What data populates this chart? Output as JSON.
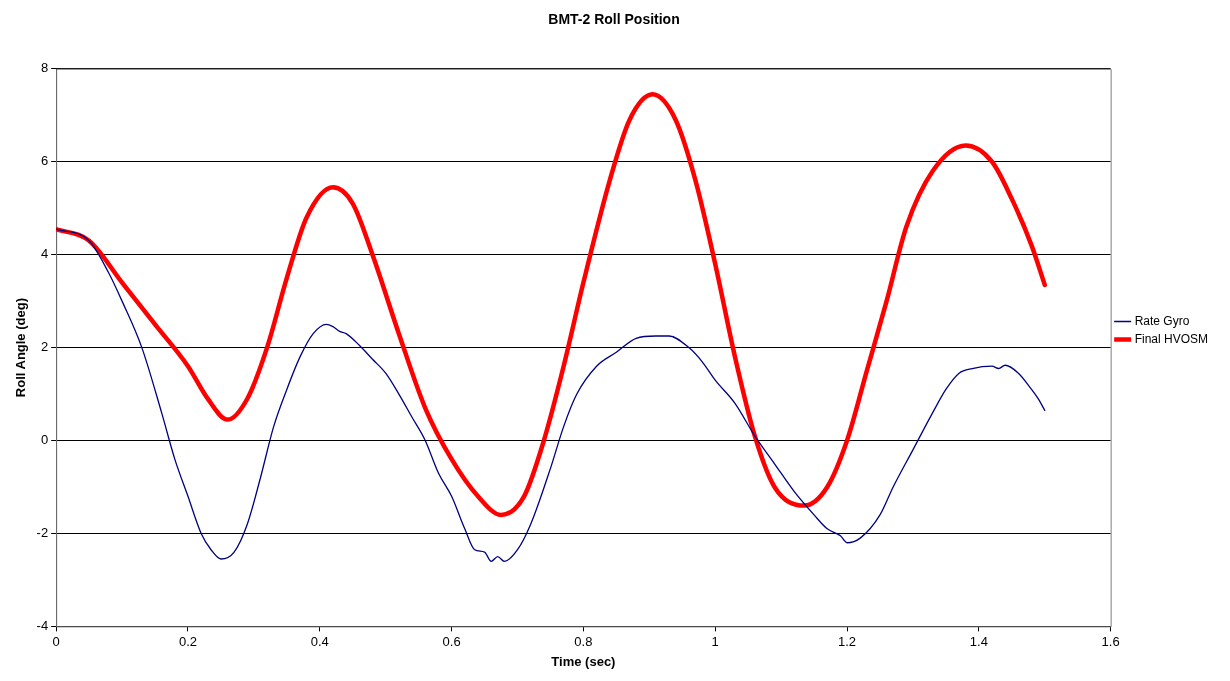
{
  "chart_data": {
    "type": "line",
    "title": "BMT-2 Roll Position",
    "xlabel": "Time (sec)",
    "ylabel": "Roll Angle (deg)",
    "xlim": [
      0,
      1.6
    ],
    "xticks": [
      0,
      0.2,
      0.4,
      0.6,
      0.8,
      1,
      1.2,
      1.4,
      1.6
    ],
    "ylim": [
      -4,
      8
    ],
    "yticks": [
      -4,
      -2,
      0,
      2,
      4,
      6,
      8
    ],
    "grid": "y",
    "legend": "right",
    "marker": "none",
    "line_style": "solid",
    "series": [
      {
        "name": "Rate Gyro",
        "color": "#000080",
        "x": [
          0,
          0.05,
          0.08,
          0.1,
          0.13,
          0.16,
          0.18,
          0.2,
          0.22,
          0.235,
          0.25,
          0.27,
          0.29,
          0.31,
          0.33,
          0.35,
          0.37,
          0.39,
          0.41,
          0.42,
          0.43,
          0.44,
          0.46,
          0.48,
          0.5,
          0.52,
          0.54,
          0.56,
          0.58,
          0.6,
          0.62,
          0.635,
          0.65,
          0.66,
          0.67,
          0.68,
          0.7,
          0.72,
          0.75,
          0.77,
          0.79,
          0.82,
          0.85,
          0.88,
          0.91,
          0.93,
          0.96,
          0.98,
          1,
          1.03,
          1.06,
          1.09,
          1.12,
          1.15,
          1.17,
          1.19,
          1.2,
          1.22,
          1.25,
          1.27,
          1.3,
          1.33,
          1.35,
          1.37,
          1.39,
          1.42,
          1.43,
          1.44,
          1.46,
          1.48,
          1.49,
          1.5
        ],
        "values": [
          4.55,
          4.3,
          3.6,
          3.0,
          2.0,
          0.6,
          -0.4,
          -1.2,
          -2.0,
          -2.35,
          -2.55,
          -2.4,
          -1.8,
          -0.8,
          0.3,
          1.1,
          1.8,
          2.3,
          2.5,
          2.45,
          2.35,
          2.3,
          2.05,
          1.75,
          1.45,
          1.0,
          0.5,
          0.0,
          -0.7,
          -1.2,
          -1.9,
          -2.35,
          -2.4,
          -2.6,
          -2.5,
          -2.6,
          -2.35,
          -1.8,
          -0.6,
          0.3,
          1.0,
          1.6,
          1.9,
          2.2,
          2.25,
          2.25,
          2.0,
          1.7,
          1.3,
          0.8,
          0.1,
          -0.5,
          -1.1,
          -1.6,
          -1.9,
          -2.05,
          -2.2,
          -2.1,
          -1.6,
          -1.0,
          -0.2,
          0.6,
          1.1,
          1.45,
          1.55,
          1.6,
          1.55,
          1.62,
          1.45,
          1.1,
          0.9,
          0.65
        ]
      },
      {
        "name": "Final HVOSM",
        "color": "#ff0000",
        "x": [
          0,
          0.05,
          0.1,
          0.15,
          0.2,
          0.23,
          0.26,
          0.29,
          0.32,
          0.35,
          0.38,
          0.42,
          0.45,
          0.48,
          0.52,
          0.56,
          0.6,
          0.64,
          0.675,
          0.71,
          0.74,
          0.77,
          0.8,
          0.84,
          0.87,
          0.905,
          0.94,
          0.97,
          1,
          1.03,
          1.06,
          1.09,
          1.135,
          1.17,
          1.2,
          1.23,
          1.26,
          1.29,
          1.33,
          1.38,
          1.42,
          1.45,
          1.48,
          1.5
        ],
        "values": [
          4.55,
          4.3,
          3.4,
          2.5,
          1.6,
          0.9,
          0.45,
          0.9,
          2.0,
          3.5,
          4.8,
          5.45,
          5.1,
          4.0,
          2.3,
          0.7,
          -0.4,
          -1.2,
          -1.6,
          -1.2,
          0.0,
          1.6,
          3.4,
          5.6,
          6.9,
          7.45,
          6.9,
          5.6,
          3.8,
          1.8,
          0.1,
          -1.0,
          -1.4,
          -1.0,
          0.0,
          1.5,
          3.0,
          4.6,
          5.8,
          6.35,
          6.0,
          5.2,
          4.2,
          3.35
        ]
      }
    ]
  }
}
